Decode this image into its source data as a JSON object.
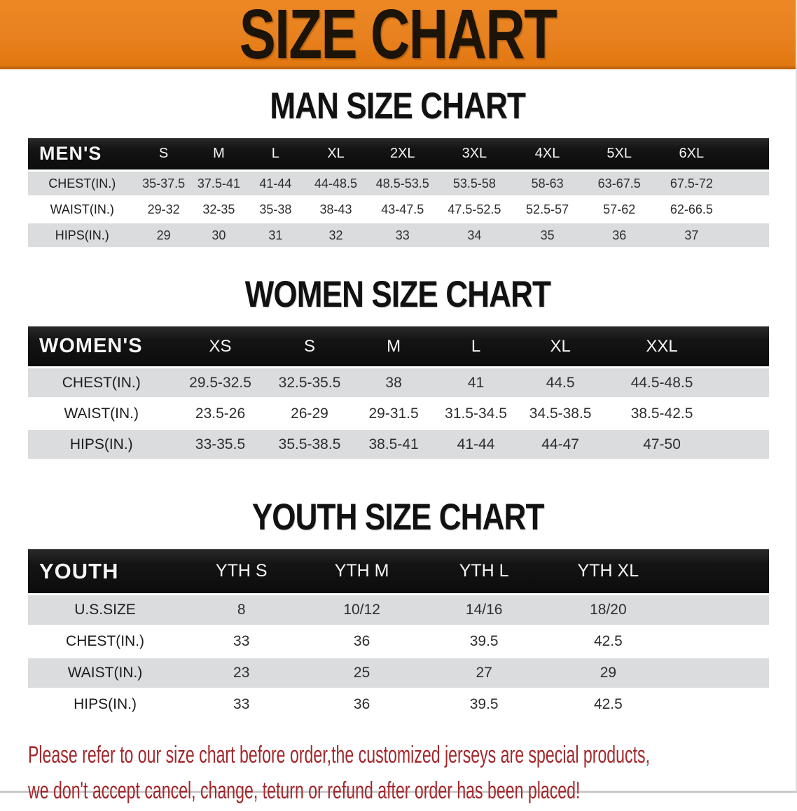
{
  "banner": {
    "title": "SIZE CHART"
  },
  "sections": [
    {
      "key": "men",
      "title": "MAN SIZE CHART",
      "header_label": "MEN'S",
      "columns": [
        "S",
        "M",
        "L",
        "XL",
        "2XL",
        "3XL",
        "4XL",
        "5XL",
        "6XL"
      ],
      "rows": [
        {
          "label": "CHEST(IN.)",
          "values": [
            "35-37.5",
            "37.5-41",
            "41-44",
            "44-48.5",
            "48.5-53.5",
            "53.5-58",
            "58-63",
            "63-67.5",
            "67.5-72"
          ]
        },
        {
          "label": "WAIST(IN.)",
          "values": [
            "29-32",
            "32-35",
            "35-38",
            "38-43",
            "43-47.5",
            "47.5-52.5",
            "52.5-57",
            "57-62",
            "62-66.5"
          ]
        },
        {
          "label": "HIPS(IN.)",
          "values": [
            "29",
            "30",
            "31",
            "32",
            "33",
            "34",
            "35",
            "36",
            "37"
          ]
        }
      ]
    },
    {
      "key": "women",
      "title": "WOMEN SIZE CHART",
      "header_label": "WOMEN'S",
      "columns": [
        "XS",
        "S",
        "M",
        "L",
        "XL",
        "XXL"
      ],
      "rows": [
        {
          "label": "CHEST(IN.)",
          "values": [
            "29.5-32.5",
            "32.5-35.5",
            "38",
            "41",
            "44.5",
            "44.5-48.5"
          ]
        },
        {
          "label": "WAIST(IN.)",
          "values": [
            "23.5-26",
            "26-29",
            "29-31.5",
            "31.5-34.5",
            "34.5-38.5",
            "38.5-42.5"
          ]
        },
        {
          "label": "HIPS(IN.)",
          "values": [
            "33-35.5",
            "35.5-38.5",
            "38.5-41",
            "41-44",
            "44-47",
            "47-50"
          ]
        }
      ]
    },
    {
      "key": "youth",
      "title": "YOUTH SIZE CHART",
      "header_label": "YOUTH",
      "columns": [
        "YTH S",
        "YTH M",
        "YTH L",
        "YTH XL"
      ],
      "rows": [
        {
          "label": "U.S.SIZE",
          "values": [
            "8",
            "10/12",
            "14/16",
            "18/20"
          ]
        },
        {
          "label": "CHEST(IN.)",
          "values": [
            "33",
            "36",
            "39.5",
            "42.5"
          ]
        },
        {
          "label": "WAIST(IN.)",
          "values": [
            "23",
            "25",
            "27",
            "29"
          ]
        },
        {
          "label": "HIPS(IN.)",
          "values": [
            "33",
            "36",
            "39.5",
            "42.5"
          ]
        }
      ]
    }
  ],
  "disclaimer": {
    "line1": "Please refer to our size chart before order,the customized jerseys are special products,",
    "line2": "we don't accept cancel, change, teturn or refund after order has been placed!"
  },
  "colors": {
    "banner_bg": "#e8811f",
    "banner_text": "#1c1309",
    "header_bar": "#141414",
    "header_bar_text": "#f5f5f5",
    "row_stripe": "#dadcdd",
    "table_text": "#2e2e2e",
    "disclaimer_red": "#a3272b"
  },
  "chart_data": {
    "type": "table",
    "tables": [
      {
        "title": "MAN SIZE CHART",
        "columns": [
          "MEN'S",
          "S",
          "M",
          "L",
          "XL",
          "2XL",
          "3XL",
          "4XL",
          "5XL",
          "6XL"
        ],
        "rows": [
          [
            "CHEST(IN.)",
            "35-37.5",
            "37.5-41",
            "41-44",
            "44-48.5",
            "48.5-53.5",
            "53.5-58",
            "58-63",
            "63-67.5",
            "67.5-72"
          ],
          [
            "WAIST(IN.)",
            "29-32",
            "32-35",
            "35-38",
            "38-43",
            "43-47.5",
            "47.5-52.5",
            "52.5-57",
            "57-62",
            "62-66.5"
          ],
          [
            "HIPS(IN.)",
            "29",
            "30",
            "31",
            "32",
            "33",
            "34",
            "35",
            "36",
            "37"
          ]
        ]
      },
      {
        "title": "WOMEN SIZE CHART",
        "columns": [
          "WOMEN'S",
          "XS",
          "S",
          "M",
          "L",
          "XL",
          "XXL"
        ],
        "rows": [
          [
            "CHEST(IN.)",
            "29.5-32.5",
            "32.5-35.5",
            "38",
            "41",
            "44.5",
            "44.5-48.5"
          ],
          [
            "WAIST(IN.)",
            "23.5-26",
            "26-29",
            "29-31.5",
            "31.5-34.5",
            "34.5-38.5",
            "38.5-42.5"
          ],
          [
            "HIPS(IN.)",
            "33-35.5",
            "35.5-38.5",
            "38.5-41",
            "41-44",
            "44-47",
            "47-50"
          ]
        ]
      },
      {
        "title": "YOUTH SIZE CHART",
        "columns": [
          "YOUTH",
          "YTH S",
          "YTH M",
          "YTH L",
          "YTH XL"
        ],
        "rows": [
          [
            "U.S.SIZE",
            "8",
            "10/12",
            "14/16",
            "18/20"
          ],
          [
            "CHEST(IN.)",
            "33",
            "36",
            "39.5",
            "42.5"
          ],
          [
            "WAIST(IN.)",
            "23",
            "25",
            "27",
            "29"
          ],
          [
            "HIPS(IN.)",
            "33",
            "36",
            "39.5",
            "42.5"
          ]
        ]
      }
    ]
  }
}
